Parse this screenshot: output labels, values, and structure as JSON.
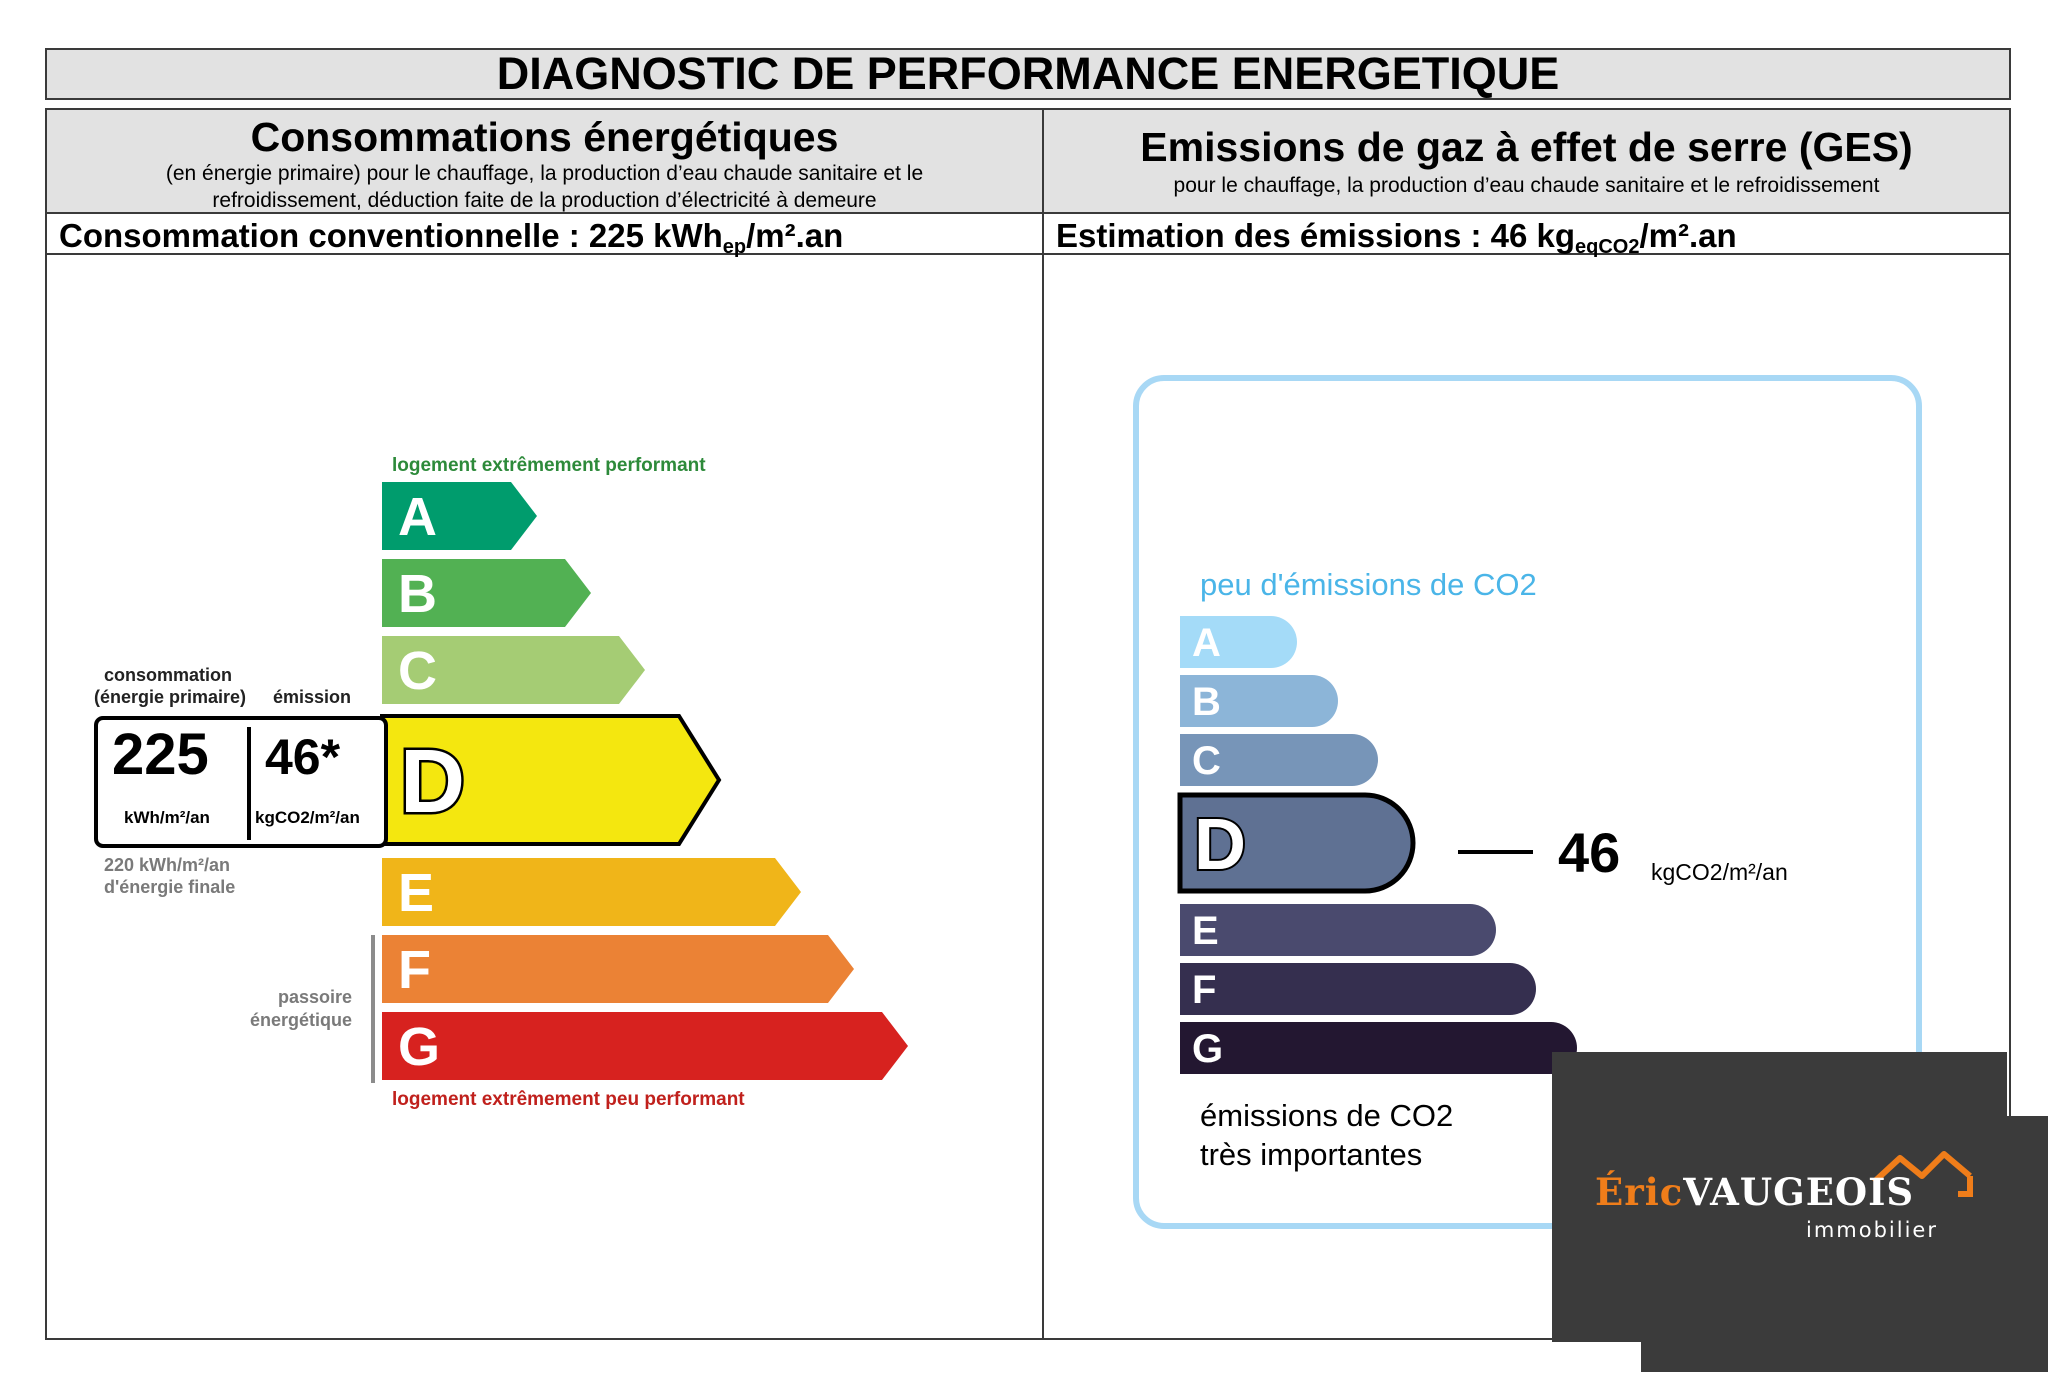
{
  "document": {
    "title": "DIAGNOSTIC DE PERFORMANCE ENERGETIQUE"
  },
  "energy": {
    "heading": "Consommations énergétiques",
    "sub_line1": "(en énergie primaire) pour le chauffage, la production d’eau chaude sanitaire et le",
    "sub_line2": "refroidissement, déduction faite de la production d’électricité à demeure",
    "summary_prefix": "Consommation conventionnelle : 225 kWh",
    "summary_sub": "ep",
    "summary_suffix": "/m².an",
    "label_top": "logement extrêmement performant",
    "label_bottom": "logement extrêmement peu performant",
    "col_label_conso_1": "consommation",
    "col_label_conso_2": "(énergie primaire)",
    "col_label_emission": "émission",
    "value_conso": "225",
    "value_emission": "46*",
    "unit_conso": "kWh/m²/an",
    "unit_emission": "kgCO2/m²/an",
    "final_1": "220 kWh/m²/an",
    "final_2": "d'énergie finale",
    "passoire_1": "passoire",
    "passoire_2": "énergétique",
    "classes": [
      {
        "letter": "A",
        "color": "#009c6d"
      },
      {
        "letter": "B",
        "color": "#52b153"
      },
      {
        "letter": "C",
        "color": "#a5cc74"
      },
      {
        "letter": "D",
        "color": "#f4e70f"
      },
      {
        "letter": "E",
        "color": "#f0b519"
      },
      {
        "letter": "F",
        "color": "#eb8235"
      },
      {
        "letter": "G",
        "color": "#d7221f"
      }
    ],
    "active_class": "D"
  },
  "ges": {
    "heading": "Emissions de gaz à effet de serre (GES)",
    "sub_line1": "pour le chauffage, la production d’eau chaude sanitaire et le refroidissement",
    "summary_prefix": "Estimation des émissions : 46 kg",
    "summary_sub": "eqCO2",
    "summary_suffix": "/m².an",
    "label_top": "peu d'émissions de CO2",
    "label_bottom_1": "émissions de CO2",
    "label_bottom_2": "très importantes",
    "value": "46",
    "unit": "kgCO2/m²/an",
    "classes": [
      {
        "letter": "A",
        "color": "#a4dbf8"
      },
      {
        "letter": "B",
        "color": "#8cb5d8"
      },
      {
        "letter": "C",
        "color": "#7795b8"
      },
      {
        "letter": "D",
        "color": "#5f7193"
      },
      {
        "letter": "E",
        "color": "#4a4a6e"
      },
      {
        "letter": "F",
        "color": "#352f4f"
      },
      {
        "letter": "G",
        "color": "#231731"
      }
    ],
    "active_class": "D",
    "frame_color": "#a8d8f5",
    "title_color": "#4ab5e8"
  },
  "brand": {
    "first": "Éric",
    "last": "VAUGEOIS",
    "sub": "immobilier",
    "accent": "#ef7d1a"
  }
}
